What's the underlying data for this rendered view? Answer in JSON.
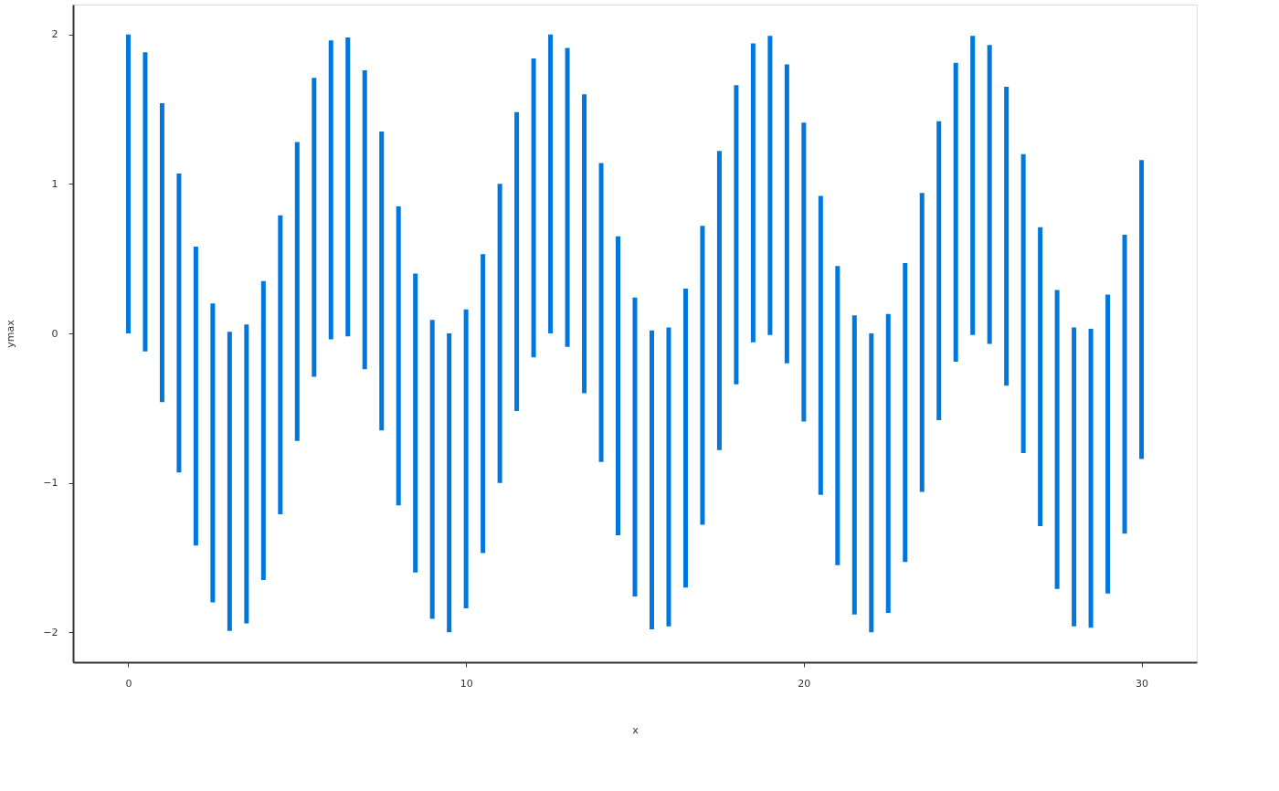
{
  "chart_data": {
    "type": "bar",
    "xlabel": "x",
    "ylabel": "ymax",
    "color": "#0077dd",
    "x": [
      0,
      0.5,
      1,
      1.5,
      2,
      2.5,
      3,
      3.5,
      4,
      4.5,
      5,
      5.5,
      6,
      6.5,
      7,
      7.5,
      8,
      8.5,
      9,
      9.5,
      10,
      10.5,
      11,
      11.5,
      12,
      12.5,
      13,
      13.5,
      14,
      14.5,
      15,
      15.5,
      16,
      16.5,
      17,
      17.5,
      18,
      18.5,
      19,
      19.5,
      20,
      20.5,
      21,
      21.5,
      22,
      22.5,
      23,
      23.5,
      24,
      24.5,
      25,
      25.5,
      26,
      26.5,
      27,
      27.5,
      28,
      28.5,
      29,
      29.5,
      30
    ],
    "base": [
      0.0,
      -0.12,
      -0.46,
      -0.93,
      -1.42,
      -1.8,
      -1.99,
      -1.94,
      -1.65,
      -1.21,
      -0.72,
      -0.29,
      -0.04,
      -0.02,
      -0.24,
      -0.65,
      -1.15,
      -1.6,
      -1.91,
      -2.0,
      -1.84,
      -1.47,
      -1.0,
      -0.52,
      -0.16,
      0.0,
      -0.09,
      -0.4,
      -0.86,
      -1.35,
      -1.76,
      -1.98,
      -1.96,
      -1.7,
      -1.28,
      -0.78,
      -0.34,
      -0.06,
      -0.01,
      -0.2,
      -0.59,
      -1.08,
      -1.55,
      -1.88,
      -2.0,
      -1.87,
      -1.53,
      -1.06,
      -0.58,
      -0.19,
      -0.01,
      -0.07,
      -0.35,
      -0.8,
      -1.29,
      -1.71,
      -1.96,
      -1.97,
      -1.74,
      -1.34,
      -0.84
    ],
    "values": [
      2,
      2,
      2,
      2,
      2,
      2,
      2,
      2,
      2,
      2,
      2,
      2,
      2,
      2,
      2,
      2,
      2,
      2,
      2,
      2,
      2,
      2,
      2,
      2,
      2,
      2,
      2,
      2,
      2,
      2,
      2,
      2,
      2,
      2,
      2,
      2,
      2,
      2,
      2,
      2,
      2,
      2,
      2,
      2,
      2,
      2,
      2,
      2,
      2,
      2,
      2,
      2,
      2,
      2,
      2,
      2,
      2,
      2,
      2,
      2,
      2
    ],
    "xlim": [
      -1.5,
      31.5
    ],
    "xticks": [
      0,
      10,
      20,
      30
    ],
    "ylim": [
      -2.2,
      2.2
    ],
    "yticks": [
      -2,
      -1,
      0,
      1,
      2
    ],
    "grid": false
  }
}
